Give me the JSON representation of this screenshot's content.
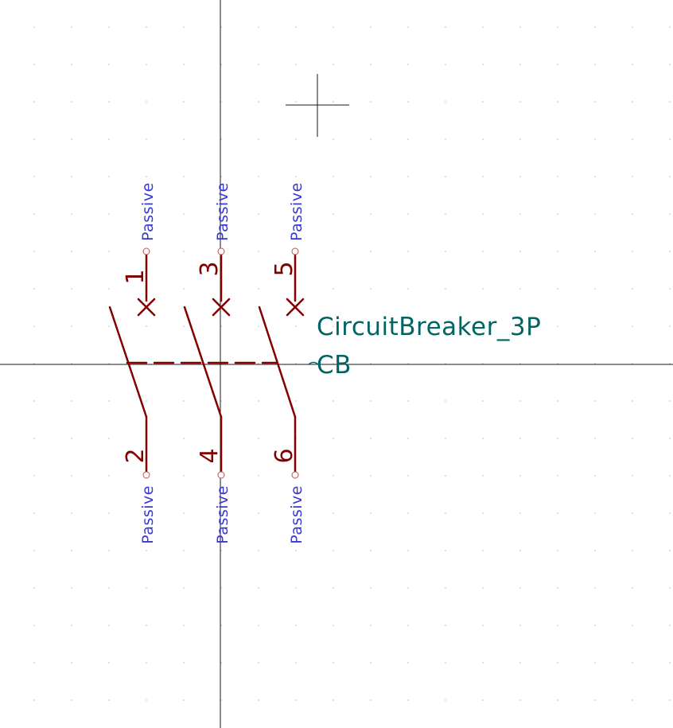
{
  "colors": {
    "background": "#ffffff",
    "grid": "#c8c8c8",
    "axis": "#1a1a1a",
    "body": "#840000",
    "pin_type_text": "#3838d4",
    "field_text": "#006464"
  },
  "symbol": {
    "value": "CircuitBreaker_3P",
    "reference": "CB"
  },
  "pins": [
    {
      "number": "1",
      "type": "Passive"
    },
    {
      "number": "3",
      "type": "Passive"
    },
    {
      "number": "5",
      "type": "Passive"
    },
    {
      "number": "2",
      "type": "Passive"
    },
    {
      "number": "4",
      "type": "Passive"
    },
    {
      "number": "6",
      "type": "Passive"
    }
  ]
}
